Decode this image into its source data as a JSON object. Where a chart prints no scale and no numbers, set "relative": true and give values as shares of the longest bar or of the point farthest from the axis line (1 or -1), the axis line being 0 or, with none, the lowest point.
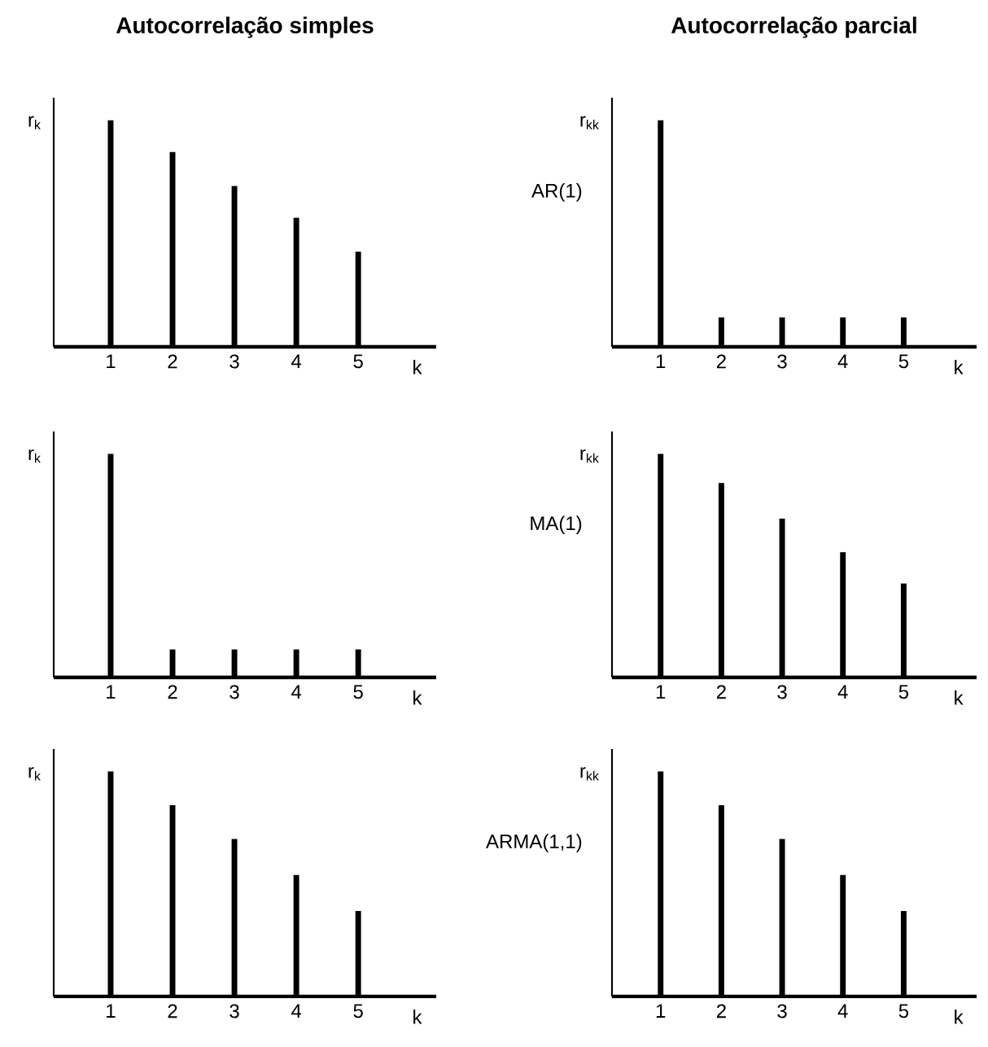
{
  "chart_data": [
    {
      "type": "bar",
      "relative": true,
      "title": "Autocorrelação simples",
      "ylabel": "r$_{k}$",
      "xlabel": "k",
      "categories": [
        "1",
        "2",
        "3",
        "4",
        "5"
      ],
      "values": [
        1,
        0.86,
        0.71,
        0.57,
        0.42
      ],
      "color": "#000000"
    },
    {
      "type": "bar",
      "relative": true,
      "title": "Autocorrelação parcial",
      "ylabel": "r$_{kk}$",
      "xlabel": "k",
      "categories": [
        "1",
        "2",
        "3",
        "4",
        "5"
      ],
      "values": [
        1,
        0.13,
        0.13,
        0.13,
        0.13
      ],
      "color": "#000000",
      "annotations": [
        "AR(1)"
      ]
    },
    {
      "type": "bar",
      "relative": true,
      "ylabel": "r$_{k}$",
      "xlabel": "k",
      "categories": [
        "1",
        "2",
        "3",
        "4",
        "5"
      ],
      "values": [
        1,
        0.125,
        0.125,
        0.125,
        0.125
      ],
      "color": "#000000"
    },
    {
      "type": "bar",
      "relative": true,
      "ylabel": "r$_{kk}$",
      "xlabel": "k",
      "categories": [
        "1",
        "2",
        "3",
        "4",
        "5"
      ],
      "values": [
        1,
        0.87,
        0.71,
        0.56,
        0.42
      ],
      "color": "#000000",
      "annotations": [
        "MA(1)"
      ]
    },
    {
      "type": "bar",
      "relative": true,
      "ylabel": "r$_{k}$",
      "xlabel": "k",
      "categories": [
        "1",
        "2",
        "3",
        "4",
        "5"
      ],
      "values": [
        1,
        0.85,
        0.7,
        0.54,
        0.38
      ],
      "color": "#000000"
    },
    {
      "type": "bar",
      "relative": true,
      "ylabel": "r$_{kk}$",
      "xlabel": "k",
      "categories": [
        "1",
        "2",
        "3",
        "4",
        "5"
      ],
      "values": [
        1,
        0.85,
        0.7,
        0.54,
        0.38
      ],
      "color": "#000000",
      "annotations": [
        "ARMA(1,1)"
      ]
    }
  ]
}
